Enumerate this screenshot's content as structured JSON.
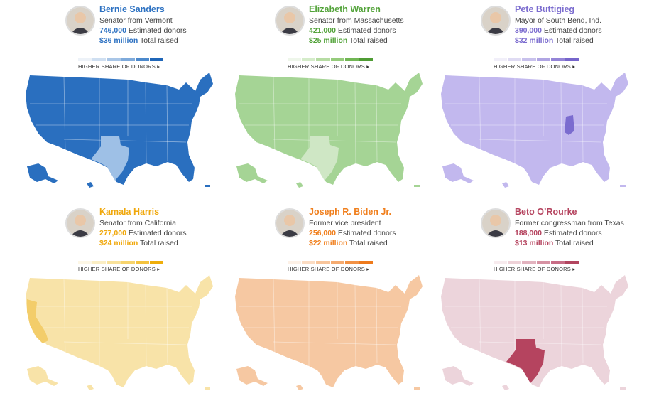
{
  "legend_label": "HIGHER SHARE OF DONORS ▸",
  "candidates": [
    {
      "name": "Bernie Sanders",
      "title": "Senator from Vermont",
      "donors_value": "746,000",
      "donors_label": "Estimated donors",
      "raised_value": "$36 million",
      "raised_label": "Total raised",
      "accent": "#2e72c2",
      "scale": [
        "#edf2f8",
        "#cfdff1",
        "#a9c6e7",
        "#7eaadb",
        "#4c89cc",
        "#1f66b8"
      ],
      "map_base": "#2a6fbf",
      "map_highlight": "#9ec0e6",
      "highlight_region": "texas",
      "avatar": "avatar-bernie-sanders"
    },
    {
      "name": "Elizabeth Warren",
      "title": "Senator from Massachusetts",
      "donors_value": "421,000",
      "donors_label": "Estimated donors",
      "raised_value": "$25 million",
      "raised_label": "Total raised",
      "accent": "#53a33a",
      "scale": [
        "#eef6ea",
        "#d5ecca",
        "#b6dca3",
        "#95cb7b",
        "#71b654",
        "#4f9c34"
      ],
      "map_base": "#a5d495",
      "map_highlight": "#cfe7c5",
      "highlight_region": "texas",
      "avatar": "avatar-elizabeth-warren"
    },
    {
      "name": "Pete Buttigieg",
      "title": "Mayor of South Bend, Ind.",
      "donors_value": "390,000",
      "donors_label": "Estimated donors",
      "raised_value": "$32 million",
      "raised_label": "Total raised",
      "accent": "#7b6ccf",
      "scale": [
        "#f1eff9",
        "#dfdbf3",
        "#c8c1ec",
        "#b0a5e3",
        "#9484d7",
        "#7665cb"
      ],
      "map_base": "#c2b8ee",
      "map_highlight": "#7b6ccf",
      "highlight_region": "indiana",
      "avatar": "avatar-pete-buttigieg"
    },
    {
      "name": "Kamala Harris",
      "title": "Senator from California",
      "donors_value": "277,000",
      "donors_label": "Estimated donors",
      "raised_value": "$24 million",
      "raised_label": "Total raised",
      "accent": "#f0a80c",
      "scale": [
        "#fdf7e6",
        "#fbeec4",
        "#f9e29b",
        "#f7d46d",
        "#f4c33f",
        "#efae0b"
      ],
      "map_base": "#f8e3a8",
      "map_highlight": "#f3cd6a",
      "highlight_region": "california",
      "avatar": "avatar-kamala-harris"
    },
    {
      "name": "Joseph R. Biden Jr.",
      "title": "Former vice president",
      "donors_value": "256,000",
      "donors_label": "Estimated donors",
      "raised_value": "$22 million",
      "raised_label": "Total raised",
      "accent": "#f07f1d",
      "scale": [
        "#fdf1e7",
        "#fbdcc3",
        "#f8c59b",
        "#f5ab70",
        "#f29245",
        "#ee7a1c"
      ],
      "map_base": "#f6c8a2",
      "map_highlight": "#fae0ca",
      "highlight_region": "none",
      "avatar": "avatar-joseph-biden"
    },
    {
      "name": "Beto O’Rourke",
      "title": "Former congressman from Texas",
      "donors_value": "188,000",
      "donors_label": "Estimated donors",
      "raised_value": "$13 million",
      "raised_label": "Total raised",
      "accent": "#b5445f",
      "scale": [
        "#f7ebee",
        "#eed2d8",
        "#e2b3bf",
        "#d692a3",
        "#c86d86",
        "#b2455f"
      ],
      "map_base": "#ecd4db",
      "map_highlight": "#b5445f",
      "highlight_region": "texas",
      "avatar": "avatar-beto-orourke"
    }
  ]
}
